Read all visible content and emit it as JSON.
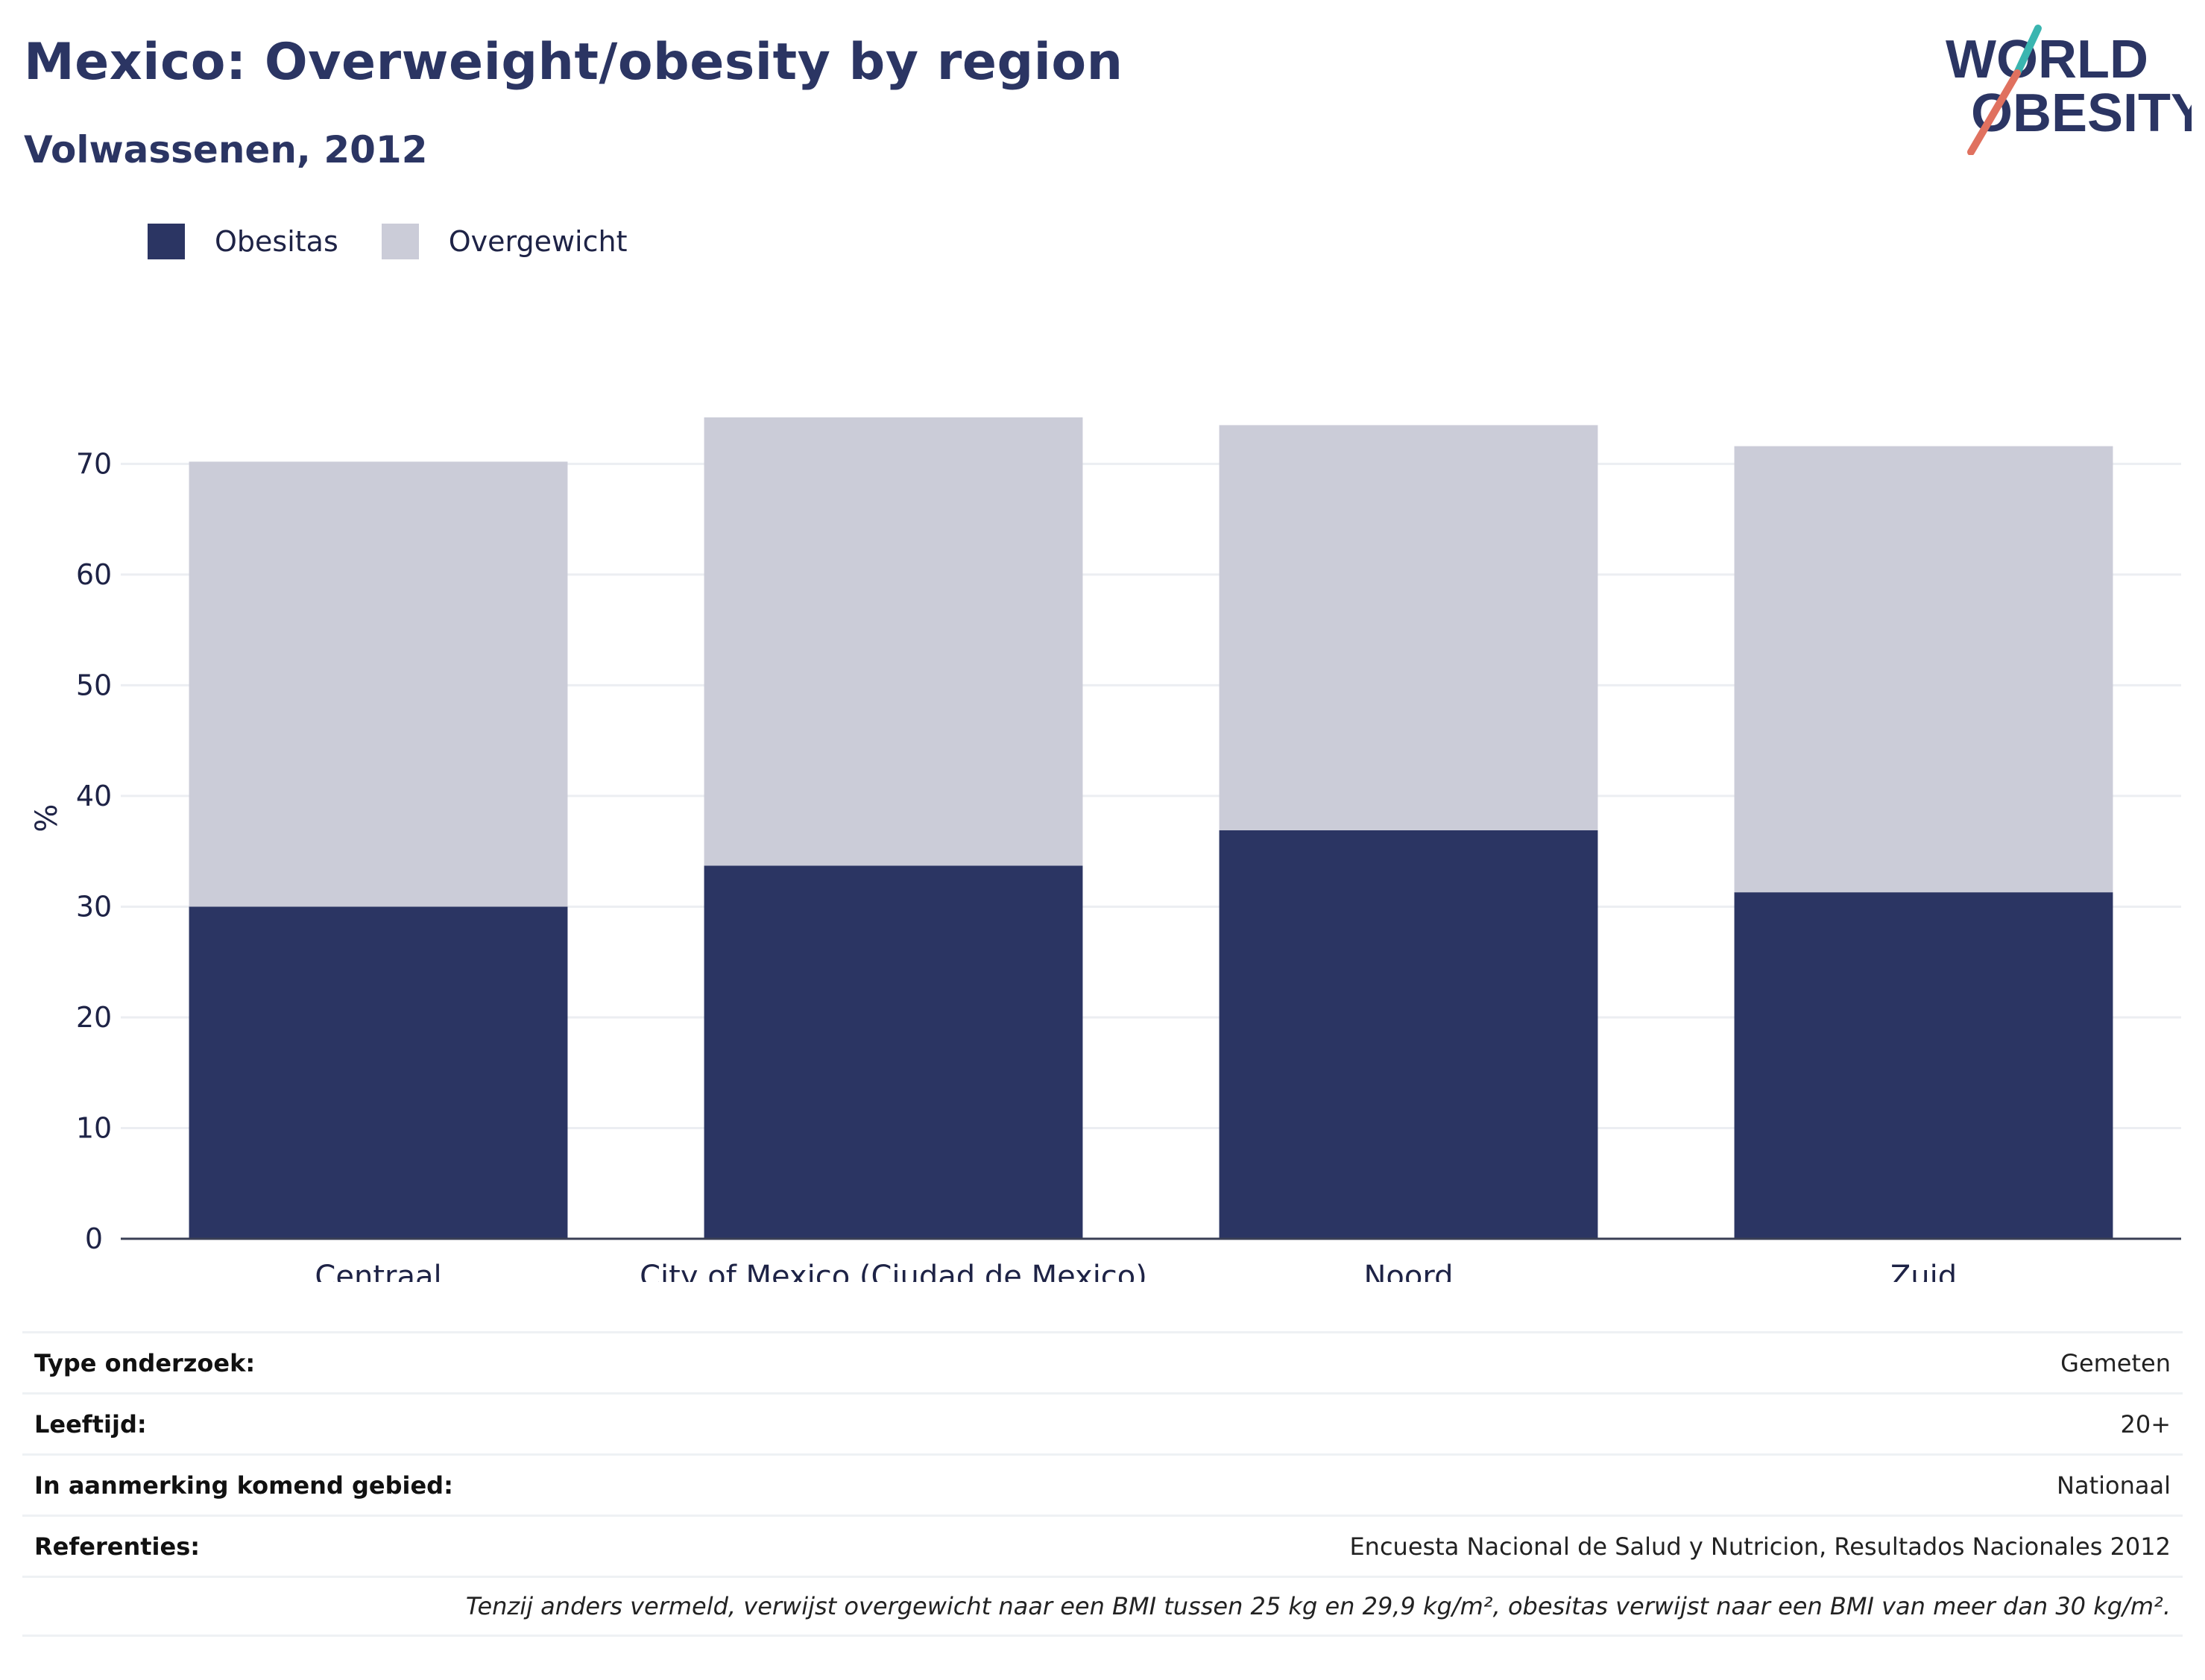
{
  "header": {
    "title": "Mexico: Overweight/obesity by region",
    "subtitle": "Volwassenen, 2012"
  },
  "logo": {
    "line1": "WORLD",
    "line2": "OBESITY"
  },
  "colors": {
    "obesity": "#2b3563",
    "overweight": "#cbccd8",
    "title": "#2b3563",
    "logo_teal": "#3ab5b0",
    "logo_coral": "#e0715f"
  },
  "chart_data": {
    "type": "bar",
    "stacked": true,
    "categories": [
      "Centraal",
      "City of Mexico (Ciudad de Mexico)",
      "Noord",
      "Zuid"
    ],
    "series": [
      {
        "name": "Obesitas",
        "values": [
          30.0,
          33.7,
          36.9,
          31.3
        ]
      },
      {
        "name": "Overgewicht",
        "values": [
          40.2,
          40.5,
          36.6,
          40.3
        ]
      }
    ],
    "ylabel": "%",
    "yticks": [
      0,
      10,
      20,
      30,
      40,
      50,
      60,
      70
    ],
    "ylim": [
      0,
      74.2
    ],
    "grid": true,
    "legend_position": "top-left"
  },
  "info": {
    "rows": [
      {
        "label": "Type onderzoek:",
        "value": "Gemeten"
      },
      {
        "label": "Leeftijd:",
        "value": "20+"
      },
      {
        "label": "In aanmerking komend gebied:",
        "value": "Nationaal"
      },
      {
        "label": "Referenties:",
        "value": "Encuesta Nacional de Salud y Nutricion, Resultados Nacionales 2012"
      }
    ],
    "note": "Tenzij anders vermeld, verwijst overgewicht naar een BMI tussen 25 kg en 29,9 kg/m², obesitas verwijst naar een BMI van meer dan 30 kg/m²."
  }
}
